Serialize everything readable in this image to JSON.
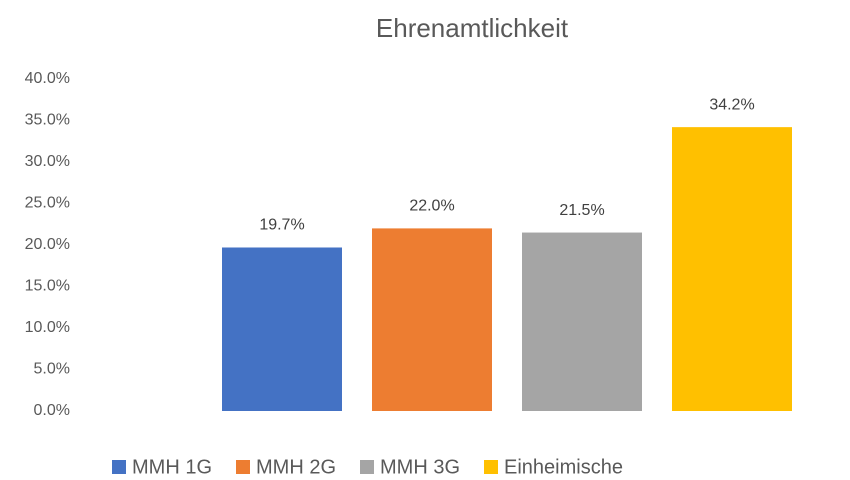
{
  "chart_data": {
    "type": "bar",
    "title": "Ehrenamtlichkeit",
    "series": [
      {
        "name": "MMH 1G",
        "color": "#4472c4",
        "values": [
          19.7
        ],
        "value_labels": [
          "19.7%"
        ]
      },
      {
        "name": "MMH 2G",
        "color": "#ed7d31",
        "values": [
          22.0
        ],
        "value_labels": [
          "22.0%"
        ]
      },
      {
        "name": "MMH 3G",
        "color": "#a5a5a5",
        "values": [
          21.5
        ],
        "value_labels": [
          "21.5%"
        ]
      },
      {
        "name": "Einheimische",
        "color": "#ffc000",
        "values": [
          34.2
        ],
        "value_labels": [
          "34.2%"
        ]
      }
    ],
    "ylim": [
      0,
      40
    ],
    "yticks": [
      {
        "value": 0,
        "label": "0.0%"
      },
      {
        "value": 5,
        "label": "5.0%"
      },
      {
        "value": 10,
        "label": "10.0%"
      },
      {
        "value": 15,
        "label": "15.0%"
      },
      {
        "value": 20,
        "label": "20.0%"
      },
      {
        "value": 25,
        "label": "25.0%"
      },
      {
        "value": 30,
        "label": "30.0%"
      },
      {
        "value": 35,
        "label": "35.0%"
      },
      {
        "value": 40,
        "label": "40.0%"
      }
    ],
    "grid": false,
    "legend": "bottom"
  }
}
